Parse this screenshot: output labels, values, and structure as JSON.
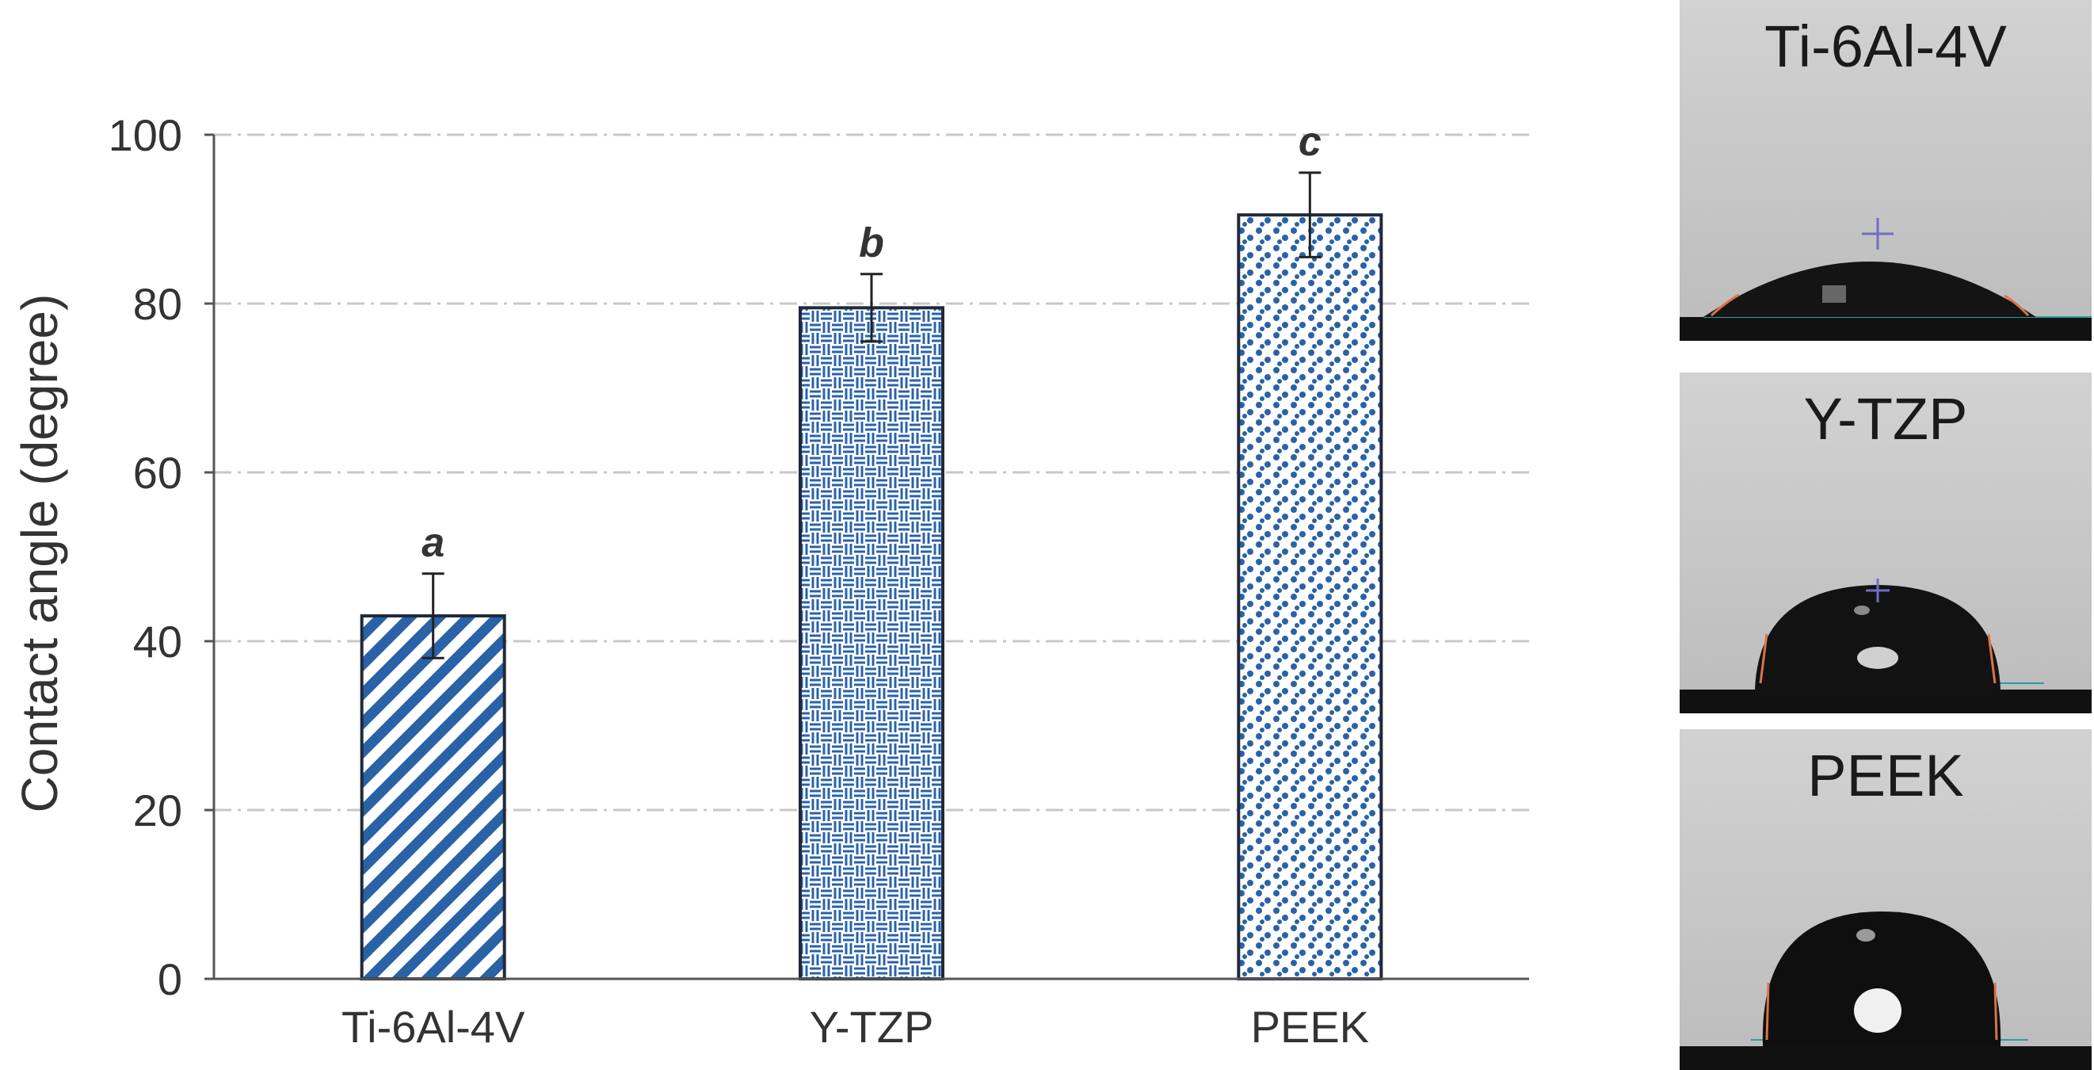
{
  "chart_data": {
    "type": "bar",
    "categories": [
      "Ti-6Al-4V",
      "Y-TZP",
      "PEEK"
    ],
    "values": [
      43,
      79.5,
      90.5
    ],
    "errors": [
      5,
      4,
      5
    ],
    "significance_letters": [
      "a",
      "b",
      "c"
    ],
    "ylabel": "Contact angle (degree)",
    "xlabel": "",
    "ylim": [
      0,
      100
    ],
    "yticks": [
      "0",
      "20",
      "40",
      "60",
      "80",
      "100"
    ],
    "grid": true,
    "grid_style": "dash-dot horizontal",
    "bar_fills": [
      "diagonal-stripes",
      "basketweave",
      "dots"
    ],
    "colors": {
      "bar_blue": "#2a62a8",
      "bar_edge": "#1f2a3a",
      "axis": "#555555",
      "grid": "#c8c8c8"
    }
  },
  "droplet_images": [
    {
      "label": "Ti-6Al-4V",
      "contact_angle_appearance": "flat"
    },
    {
      "label": "Y-TZP",
      "contact_angle_appearance": "medium"
    },
    {
      "label": "PEEK",
      "contact_angle_appearance": "tall"
    }
  ]
}
